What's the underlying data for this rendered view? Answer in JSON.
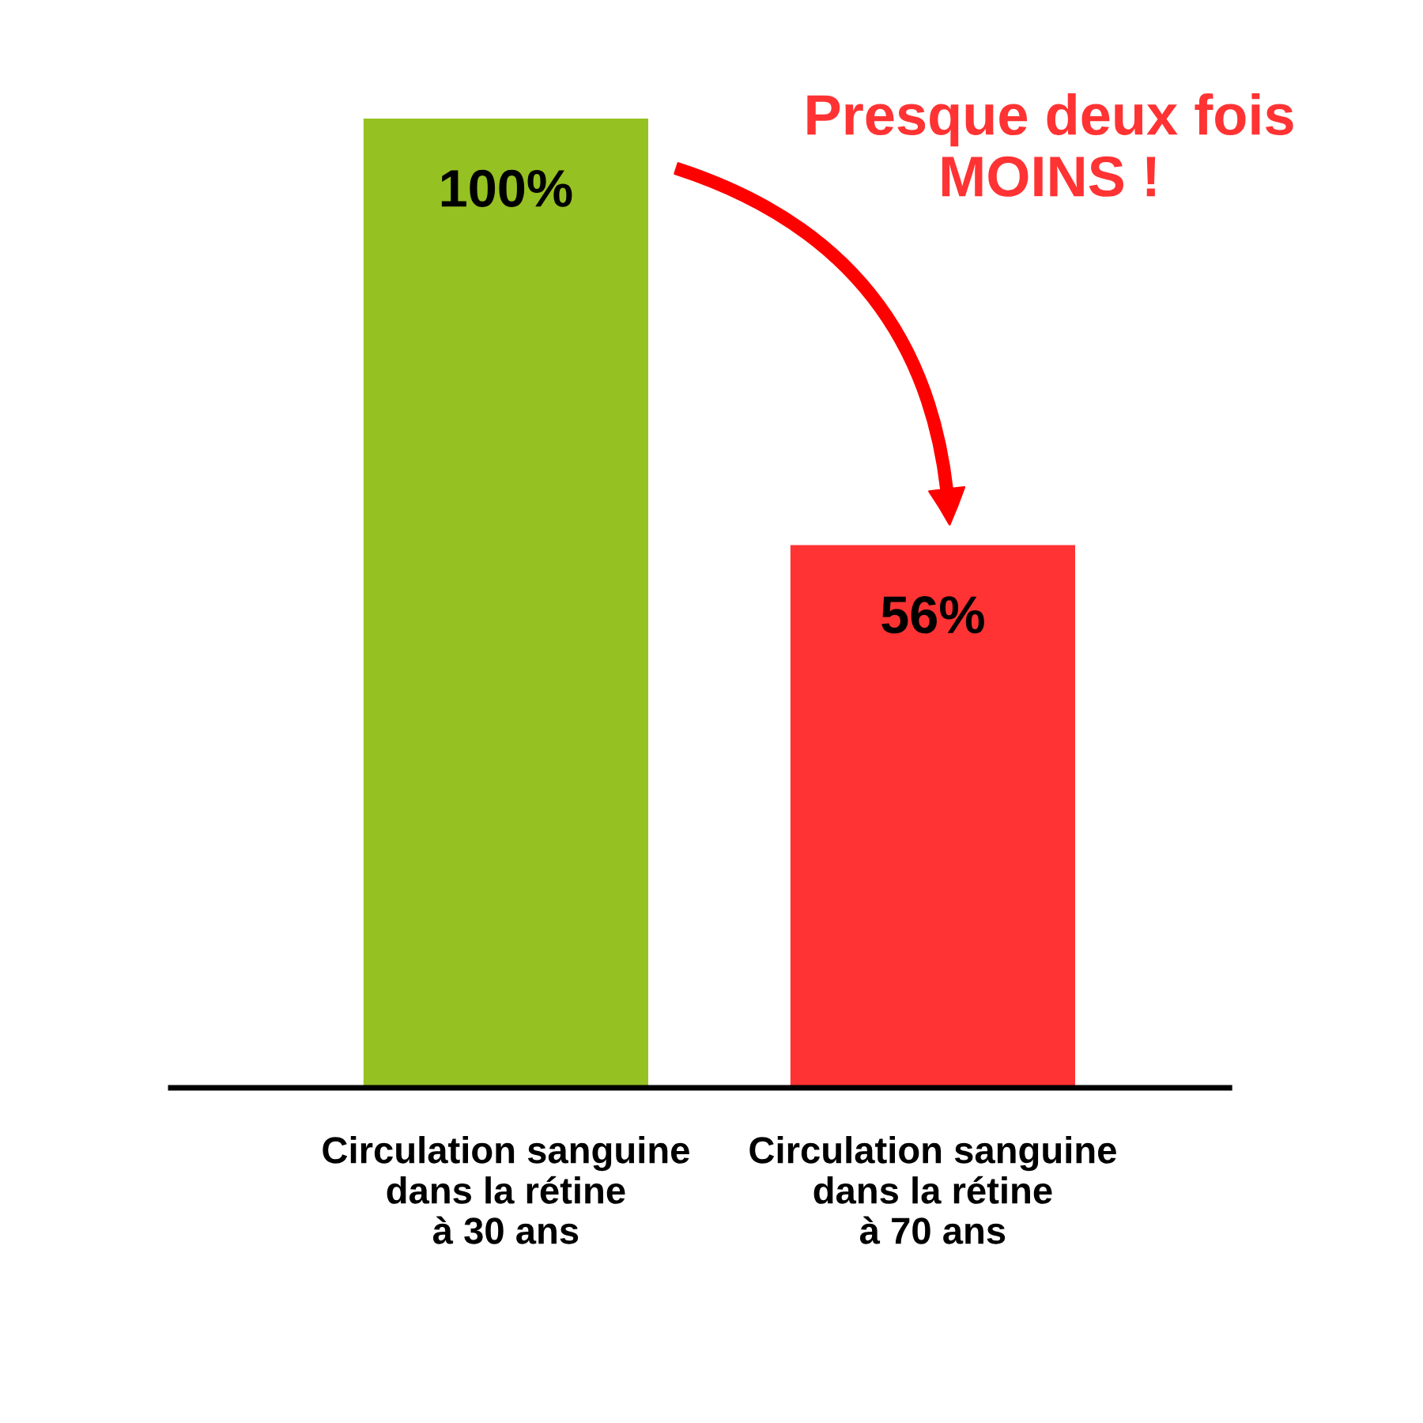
{
  "chart_data": {
    "type": "bar",
    "categories": [
      "Circulation sanguine\ndans la rétine\nà 30 ans",
      "Circulation sanguine\ndans la rétine\nà 70 ans"
    ],
    "values": [
      100,
      56
    ],
    "colors": [
      "#96c122",
      "#ff3333"
    ],
    "value_labels": [
      "100%",
      "56%"
    ],
    "annotations": [
      "Presque deux fois\nMOINS !"
    ]
  }
}
